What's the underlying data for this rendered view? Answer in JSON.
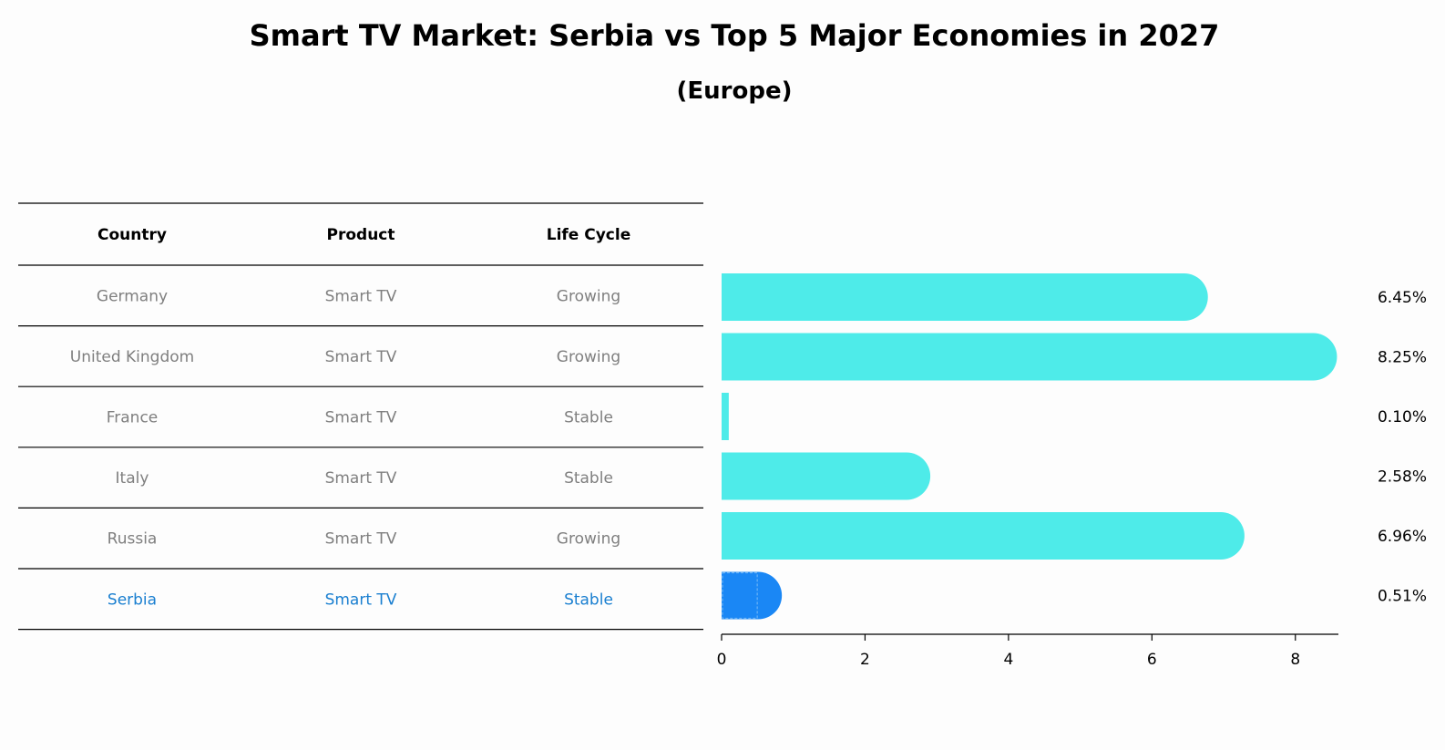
{
  "chart_data": {
    "type": "bar",
    "orientation": "horizontal",
    "title": "Smart TV Market: Serbia vs Top 5 Major Economies in 2027",
    "subtitle": "(Europe)",
    "columns": [
      "Country",
      "Product",
      "Life Cycle"
    ],
    "rows": [
      {
        "country": "Germany",
        "product": "Smart TV",
        "life_cycle": "Growing",
        "value": 6.45,
        "label": "6.45%",
        "highlight": false
      },
      {
        "country": "United Kingdom",
        "product": "Smart TV",
        "life_cycle": "Growing",
        "value": 8.25,
        "label": "8.25%",
        "highlight": false
      },
      {
        "country": "France",
        "product": "Smart TV",
        "life_cycle": "Stable",
        "value": 0.1,
        "label": "0.10%",
        "highlight": false
      },
      {
        "country": "Italy",
        "product": "Smart TV",
        "life_cycle": "Stable",
        "value": 2.58,
        "label": "2.58%",
        "highlight": false
      },
      {
        "country": "Russia",
        "product": "Smart TV",
        "life_cycle": "Growing",
        "value": 6.96,
        "label": "6.96%",
        "highlight": false
      },
      {
        "country": "Serbia",
        "product": "Smart TV",
        "life_cycle": "Stable",
        "value": 0.51,
        "label": "0.51%",
        "highlight": true
      }
    ],
    "xticks": [
      0,
      2,
      4,
      6,
      8
    ],
    "xlim": [
      0,
      8.6
    ],
    "colors": {
      "bar": "#4eebe9",
      "highlight": "#1a87f5",
      "text": "#7f7f7f",
      "highlight_text": "#1a7fd0",
      "line": "#000000"
    }
  }
}
